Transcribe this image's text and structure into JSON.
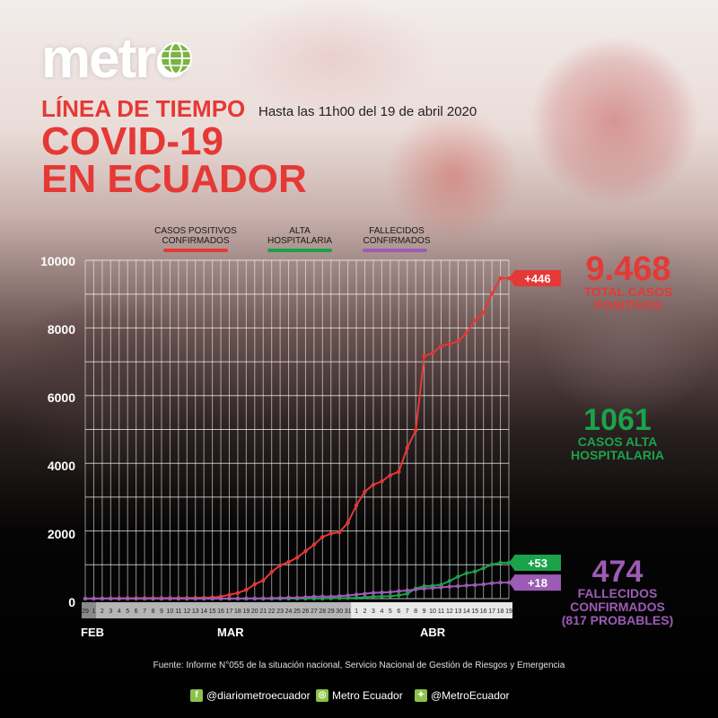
{
  "header": {
    "logo": "metro",
    "title_line1": "LÍNEA DE TIEMPO",
    "subtitle": "Hasta las 11h00 del 19 de abril 2020",
    "title_line2": "COVID-19",
    "title_line3": "EN ECUADOR"
  },
  "legend": {
    "cases": "CASOS POSITIVOS CONFIRMADOS",
    "recovered": "ALTA HOSPITALARIA",
    "deaths": "FALLECIDOS CONFIRMADOS"
  },
  "colors": {
    "cases": "#e53935",
    "recovered": "#1aa34a",
    "deaths": "#9c5bb5"
  },
  "stats": {
    "cases_total": "9.468",
    "cases_label1": "TOTAL CASOS",
    "cases_label2": "POSITIVOS",
    "recovered_total": "1061",
    "recovered_label1": "CASOS ALTA",
    "recovered_label2": "HOSPITALARIA",
    "deaths_total": "474",
    "deaths_label1": "FALLECIDOS",
    "deaths_label2": "CONFIRMADOS",
    "deaths_label3": "(817 PROBABLES)"
  },
  "footer": {
    "source": "Fuente: Informe N°055 de la situación nacional, Servicio Nacional de Gestión de Riesgos y Emergencia",
    "facebook": "@diariometroecuador",
    "instagram": "Metro Ecuador",
    "twitter": "@MetroEcuador"
  },
  "chart_data": {
    "type": "line",
    "months": [
      "FEB",
      "MAR",
      "ABR"
    ],
    "x": [
      "29",
      "1",
      "2",
      "3",
      "4",
      "5",
      "6",
      "7",
      "8",
      "9",
      "10",
      "11",
      "12",
      "13",
      "14",
      "15",
      "16",
      "17",
      "18",
      "19",
      "20",
      "21",
      "22",
      "23",
      "24",
      "25",
      "26",
      "27",
      "28",
      "29",
      "30",
      "31",
      "1",
      "2",
      "3",
      "4",
      "5",
      "6",
      "7",
      "8",
      "9",
      "10",
      "11",
      "12",
      "13",
      "14",
      "15",
      "16",
      "17",
      "18",
      "19"
    ],
    "yticks": [
      "0",
      "2000",
      "4000",
      "6000",
      "8000",
      "10000"
    ],
    "ylim": [
      0,
      10000
    ],
    "series": [
      {
        "name": "CASOS POSITIVOS CONFIRMADOS",
        "key": "cases",
        "values": [
          1,
          6,
          7,
          10,
          13,
          14,
          14,
          15,
          15,
          17,
          17,
          19,
          20,
          23,
          28,
          37,
          58,
          111,
          168,
          260,
          426,
          532,
          789,
          981,
          1082,
          1211,
          1403,
          1595,
          1823,
          1924,
          1962,
          2240,
          2758,
          3163,
          3368,
          3465,
          3646,
          3747,
          4450,
          4965,
          7161,
          7257,
          7466,
          7529,
          7603,
          7858,
          8225,
          8450,
          9022,
          9468,
          9468
        ],
        "end_label": "+446"
      },
      {
        "name": "ALTA HOSPITALARIA",
        "key": "recovered",
        "values": [
          0,
          0,
          0,
          0,
          0,
          0,
          0,
          0,
          0,
          0,
          0,
          0,
          0,
          0,
          0,
          0,
          0,
          0,
          0,
          0,
          0,
          0,
          0,
          0,
          3,
          3,
          3,
          3,
          3,
          10,
          15,
          20,
          25,
          40,
          58,
          65,
          72,
          100,
          140,
          300,
          368,
          380,
          411,
          522,
          650,
          750,
          800,
          898,
          1008,
          1061,
          1061
        ],
        "end_label": "+53"
      },
      {
        "name": "FALLECIDOS CONFIRMADOS",
        "key": "deaths",
        "values": [
          0,
          0,
          0,
          0,
          0,
          0,
          0,
          0,
          0,
          0,
          0,
          0,
          0,
          0,
          1,
          2,
          2,
          2,
          3,
          4,
          5,
          7,
          14,
          18,
          27,
          28,
          41,
          58,
          60,
          62,
          75,
          93,
          120,
          145,
          172,
          180,
          191,
          220,
          242,
          272,
          297,
          315,
          333,
          355,
          369,
          388,
          403,
          421,
          456,
          474,
          474
        ],
        "end_label": "+18"
      }
    ]
  }
}
